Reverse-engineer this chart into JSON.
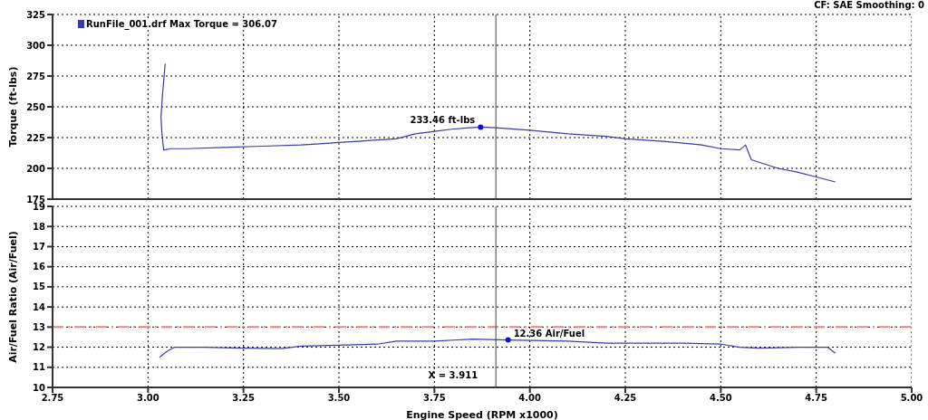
{
  "chart_data": [
    {
      "type": "line",
      "ylabel": "Torque (ft-lbs)",
      "annotations": [
        "CF: SAE  Smoothing: 0",
        {
          "text": "233.46 ft-lbs",
          "x": 3.871,
          "y": 233.46
        }
      ],
      "series": [
        {
          "name": "RunFile_001.drf Max Torque = 306.07",
          "color": "#3c3ca8",
          "x": [
            3.045,
            3.038,
            3.034,
            3.036,
            3.041,
            3.06,
            3.1,
            3.2,
            3.3,
            3.4,
            3.45,
            3.5,
            3.55,
            3.6,
            3.65,
            3.7,
            3.75,
            3.8,
            3.871,
            3.911,
            4.0,
            4.1,
            4.2,
            4.25,
            4.35,
            4.45,
            4.5,
            4.55,
            4.565,
            4.58,
            4.65,
            4.7,
            4.75,
            4.8
          ],
          "values": [
            285,
            260,
            242,
            230,
            215,
            216,
            216,
            217,
            218,
            219,
            220,
            221,
            222,
            223,
            224,
            228,
            230,
            232,
            233.5,
            233,
            231,
            228,
            226,
            224,
            222,
            219,
            216,
            215,
            219,
            207,
            200,
            197,
            193,
            189
          ]
        }
      ],
      "xlim": [
        2.75,
        5
      ],
      "xticks": [
        2.75,
        3,
        3.25,
        3.5,
        3.75,
        4,
        4.25,
        4.5,
        4.75,
        5
      ],
      "ylim": [
        175,
        325
      ],
      "yticks": [
        175,
        200,
        225,
        250,
        275,
        300,
        325
      ],
      "tick_labels": "y",
      "grid": true,
      "legend": "top left",
      "marker": "none",
      "line_style": "solid",
      "ref_lines": [
        {
          "axis": "x",
          "value": 3.911,
          "color": "#404040",
          "line_style": "solid"
        }
      ]
    },
    {
      "type": "line",
      "xlabel": "Engine Speed (RPM x1000)",
      "ylabel": "Air/Fuel Ratio (Air/Fuel)",
      "annotations": [
        {
          "text": "12.36 Air/Fuel",
          "x": 3.943,
          "y": 12.36
        }
      ],
      "series": [
        {
          "color": "#3c3ca8",
          "x": [
            3.03,
            3.05,
            3.07,
            3.15,
            3.25,
            3.35,
            3.4,
            3.5,
            3.6,
            3.65,
            3.75,
            3.85,
            3.943,
            4.1,
            4.2,
            4.4,
            4.5,
            4.55,
            4.6,
            4.7,
            4.78,
            4.8
          ],
          "values": [
            11.5,
            11.8,
            12.0,
            12.0,
            11.95,
            11.93,
            12.05,
            12.1,
            12.15,
            12.3,
            12.3,
            12.4,
            12.36,
            12.3,
            12.2,
            12.2,
            12.15,
            12.0,
            11.95,
            12.0,
            12.0,
            11.7
          ]
        }
      ],
      "xlim": [
        2.75,
        5
      ],
      "xticks": [
        {
          "value": 2.75,
          "label": "2.75"
        },
        {
          "value": 3,
          "label": "3.00"
        },
        {
          "value": 3.25,
          "label": "3.25"
        },
        {
          "value": 3.5,
          "label": "3.50"
        },
        {
          "value": 3.75,
          "label": "3.75"
        },
        {
          "value": 4,
          "label": "4.00"
        },
        {
          "value": 4.25,
          "label": "4.25"
        },
        {
          "value": 4.5,
          "label": "4.50"
        },
        {
          "value": 4.75,
          "label": "4.75"
        },
        {
          "value": 5,
          "label": "5.00"
        }
      ],
      "ylim": [
        10,
        19
      ],
      "yticks": [
        10,
        11,
        12,
        13,
        14,
        15,
        16,
        17,
        18,
        19
      ],
      "grid": true,
      "marker": "none",
      "line_style": "solid",
      "ref_lines": [
        {
          "axis": "y",
          "value": 13,
          "color": "#e08a80",
          "line_style": "dashed"
        },
        {
          "axis": "x",
          "value": 3.911,
          "label": "X = 3.911",
          "color": "#404040",
          "line_style": "solid"
        }
      ]
    }
  ]
}
